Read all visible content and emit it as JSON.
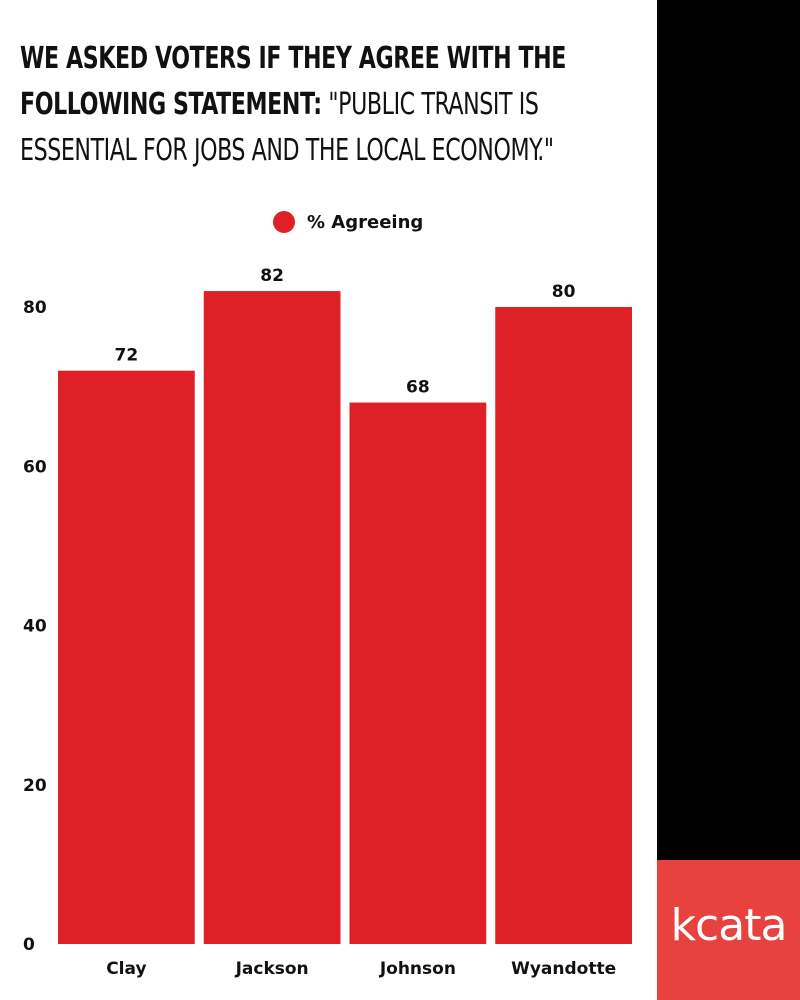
{
  "title": {
    "bold_part": "We asked voters if they agree with the following statement:",
    "quote_part": "\"Public transit is essential for jobs and the local economy.\""
  },
  "brand": {
    "name": "kcata"
  },
  "colors": {
    "bar": "#e02027",
    "side_panel": "#000000",
    "brand_box": "#e8423f",
    "text": "#111111"
  },
  "chart_data": {
    "type": "bar",
    "title": "We asked voters if they agree with the following statement: \"Public transit is essential for jobs and the local economy.\"",
    "categories": [
      "Clay",
      "Jackson",
      "Johnson",
      "Wyandotte"
    ],
    "series": [
      {
        "name": "% Agreeing",
        "values": [
          72,
          82,
          68,
          80
        ]
      }
    ],
    "ylim": [
      0,
      85
    ],
    "yticks": [
      0,
      20,
      40,
      60,
      80
    ],
    "xlabel": "",
    "ylabel": "",
    "legend": "top-center",
    "grid": false
  }
}
